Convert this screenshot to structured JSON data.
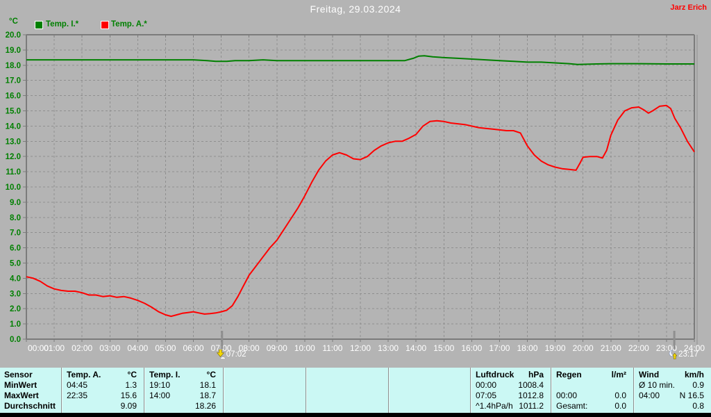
{
  "header": {
    "title": "Freitag, 29.03.2024",
    "user": "Jarz Erich"
  },
  "chart_data": {
    "type": "line",
    "title": "Freitag, 29.03.2024",
    "x_axis": {
      "min_hour": 0,
      "max_hour": 24,
      "tick_labels": [
        "00:00",
        "01:00",
        "02:00",
        "03:00",
        "04:00",
        "05:00",
        "06:00",
        "07:00",
        "08:00",
        "09:00",
        "10:00",
        "11:00",
        "12:00",
        "13:00",
        "14:00",
        "15:00",
        "16:00",
        "17:00",
        "18:00",
        "19:00",
        "20:00",
        "21:00",
        "22:00",
        "23:00",
        "24:00"
      ]
    },
    "y_axis": {
      "unit": "°C",
      "min": 0,
      "max": 20,
      "step": 1
    },
    "grid": true,
    "legend_position": "top-left",
    "legend": [
      {
        "label": "Temp. I.*",
        "color": "#008000"
      },
      {
        "label": "Temp. A.*",
        "color": "#ff0000"
      }
    ],
    "series": [
      {
        "name": "Temp. I.*",
        "color": "#008000",
        "points": [
          [
            0,
            18.35
          ],
          [
            0.5,
            18.35
          ],
          [
            1,
            18.35
          ],
          [
            1.5,
            18.35
          ],
          [
            2,
            18.35
          ],
          [
            2.5,
            18.35
          ],
          [
            3,
            18.35
          ],
          [
            3.5,
            18.35
          ],
          [
            4,
            18.35
          ],
          [
            4.5,
            18.35
          ],
          [
            5,
            18.35
          ],
          [
            5.5,
            18.35
          ],
          [
            6,
            18.35
          ],
          [
            6.5,
            18.3
          ],
          [
            6.8,
            18.25
          ],
          [
            7.2,
            18.25
          ],
          [
            7.5,
            18.3
          ],
          [
            8,
            18.3
          ],
          [
            8.5,
            18.35
          ],
          [
            9,
            18.3
          ],
          [
            10,
            18.3
          ],
          [
            11,
            18.3
          ],
          [
            12,
            18.3
          ],
          [
            13,
            18.3
          ],
          [
            13.6,
            18.3
          ],
          [
            13.9,
            18.45
          ],
          [
            14.1,
            18.6
          ],
          [
            14.3,
            18.62
          ],
          [
            14.6,
            18.55
          ],
          [
            15,
            18.5
          ],
          [
            15.5,
            18.45
          ],
          [
            16,
            18.4
          ],
          [
            16.5,
            18.35
          ],
          [
            17,
            18.3
          ],
          [
            17.5,
            18.25
          ],
          [
            18,
            18.2
          ],
          [
            18.5,
            18.2
          ],
          [
            19,
            18.15
          ],
          [
            19.5,
            18.1
          ],
          [
            19.8,
            18.05
          ],
          [
            20.5,
            18.08
          ],
          [
            21,
            18.1
          ],
          [
            22,
            18.1
          ],
          [
            23,
            18.08
          ],
          [
            24,
            18.08
          ]
        ]
      },
      {
        "name": "Temp. A.*",
        "color": "#ff0000",
        "points": [
          [
            0,
            4.1
          ],
          [
            0.25,
            4.0
          ],
          [
            0.5,
            3.8
          ],
          [
            0.75,
            3.5
          ],
          [
            1,
            3.3
          ],
          [
            1.25,
            3.2
          ],
          [
            1.5,
            3.15
          ],
          [
            1.75,
            3.15
          ],
          [
            2,
            3.05
          ],
          [
            2.25,
            2.9
          ],
          [
            2.5,
            2.9
          ],
          [
            2.75,
            2.8
          ],
          [
            3,
            2.85
          ],
          [
            3.25,
            2.75
          ],
          [
            3.5,
            2.8
          ],
          [
            3.75,
            2.7
          ],
          [
            4,
            2.55
          ],
          [
            4.25,
            2.35
          ],
          [
            4.5,
            2.1
          ],
          [
            4.75,
            1.8
          ],
          [
            5,
            1.6
          ],
          [
            5.2,
            1.5
          ],
          [
            5.4,
            1.6
          ],
          [
            5.6,
            1.7
          ],
          [
            5.8,
            1.75
          ],
          [
            6,
            1.8
          ],
          [
            6.2,
            1.72
          ],
          [
            6.4,
            1.65
          ],
          [
            6.6,
            1.68
          ],
          [
            6.8,
            1.72
          ],
          [
            7,
            1.8
          ],
          [
            7.2,
            1.9
          ],
          [
            7.4,
            2.2
          ],
          [
            7.6,
            2.8
          ],
          [
            7.8,
            3.5
          ],
          [
            8,
            4.2
          ],
          [
            8.25,
            4.8
          ],
          [
            8.5,
            5.4
          ],
          [
            8.75,
            6.0
          ],
          [
            9,
            6.5
          ],
          [
            9.25,
            7.2
          ],
          [
            9.5,
            7.9
          ],
          [
            9.75,
            8.6
          ],
          [
            10,
            9.4
          ],
          [
            10.25,
            10.3
          ],
          [
            10.5,
            11.1
          ],
          [
            10.75,
            11.7
          ],
          [
            11,
            12.1
          ],
          [
            11.25,
            12.25
          ],
          [
            11.5,
            12.1
          ],
          [
            11.75,
            11.85
          ],
          [
            12,
            11.8
          ],
          [
            12.25,
            12.0
          ],
          [
            12.5,
            12.4
          ],
          [
            12.75,
            12.7
          ],
          [
            13,
            12.9
          ],
          [
            13.25,
            13.0
          ],
          [
            13.5,
            13.0
          ],
          [
            13.75,
            13.2
          ],
          [
            14,
            13.45
          ],
          [
            14.25,
            14.0
          ],
          [
            14.5,
            14.3
          ],
          [
            14.75,
            14.35
          ],
          [
            15,
            14.3
          ],
          [
            15.25,
            14.2
          ],
          [
            15.5,
            14.15
          ],
          [
            15.75,
            14.1
          ],
          [
            16,
            14.0
          ],
          [
            16.25,
            13.9
          ],
          [
            16.5,
            13.85
          ],
          [
            16.75,
            13.8
          ],
          [
            17,
            13.75
          ],
          [
            17.25,
            13.7
          ],
          [
            17.5,
            13.7
          ],
          [
            17.75,
            13.55
          ],
          [
            18,
            12.7
          ],
          [
            18.25,
            12.1
          ],
          [
            18.5,
            11.7
          ],
          [
            18.75,
            11.45
          ],
          [
            19,
            11.3
          ],
          [
            19.25,
            11.2
          ],
          [
            19.5,
            11.15
          ],
          [
            19.75,
            11.1
          ],
          [
            19.9,
            11.6
          ],
          [
            20,
            11.95
          ],
          [
            20.25,
            12.0
          ],
          [
            20.5,
            12.0
          ],
          [
            20.7,
            11.9
          ],
          [
            20.85,
            12.4
          ],
          [
            21,
            13.4
          ],
          [
            21.25,
            14.4
          ],
          [
            21.5,
            15.0
          ],
          [
            21.75,
            15.2
          ],
          [
            22,
            15.25
          ],
          [
            22.2,
            15.05
          ],
          [
            22.35,
            14.85
          ],
          [
            22.5,
            15.0
          ],
          [
            22.75,
            15.3
          ],
          [
            23,
            15.35
          ],
          [
            23.15,
            15.15
          ],
          [
            23.3,
            14.5
          ],
          [
            23.5,
            13.9
          ],
          [
            23.75,
            13.0
          ],
          [
            24,
            12.3
          ]
        ]
      }
    ],
    "markers": [
      {
        "time_hours": 7.03,
        "label": "07:02",
        "icon": "sunrise-icon"
      },
      {
        "time_hours": 23.28,
        "label": "23:17",
        "icon": "moonrise-icon"
      }
    ]
  },
  "table": {
    "row_headers": [
      "Sensor",
      "MinWert",
      "MaxWert",
      "Durchschnitt"
    ],
    "columns": [
      {
        "name": "Temp. A.",
        "unit": "°C",
        "rows": [
          [
            "04:45",
            "1.3"
          ],
          [
            "22:35",
            "15.6"
          ],
          [
            "",
            "9.09"
          ]
        ]
      },
      {
        "name": "Temp. I.",
        "unit": "°C",
        "rows": [
          [
            "19:10",
            "18.1"
          ],
          [
            "14:00",
            "18.7"
          ],
          [
            "",
            "18.26"
          ]
        ]
      },
      {
        "name": "",
        "unit": "",
        "rows": [
          [
            "",
            ""
          ],
          [
            "",
            ""
          ],
          [
            "",
            ""
          ]
        ]
      },
      {
        "name": "",
        "unit": "",
        "rows": [
          [
            "",
            ""
          ],
          [
            "",
            ""
          ],
          [
            "",
            ""
          ]
        ]
      },
      {
        "name": "",
        "unit": "",
        "rows": [
          [
            "",
            ""
          ],
          [
            "",
            ""
          ],
          [
            "",
            ""
          ]
        ]
      },
      {
        "name": "Luftdruck",
        "unit": "hPa",
        "rows": [
          [
            "00:00",
            "1008.4"
          ],
          [
            "07:05",
            "1012.8"
          ],
          [
            "^1.4hPa/h",
            "1011.2"
          ]
        ]
      },
      {
        "name": "Regen",
        "unit": "l/m²",
        "rows": [
          [
            "",
            ""
          ],
          [
            "00:00",
            "0.0"
          ],
          [
            "Gesamt:",
            "0.0"
          ]
        ]
      },
      {
        "name": "Wind",
        "unit": "km/h",
        "rows": [
          [
            "Ø 10 min.",
            "0.9"
          ],
          [
            "04:00",
            "N 16.5"
          ],
          [
            "",
            "0.8"
          ]
        ]
      }
    ]
  },
  "colors": {
    "background": "#b4b4b4",
    "plot_frame": "#7b7b7b",
    "grid": "#8f8f8f",
    "axis_label_green": "#008000",
    "axis_label_white": "#ffffff",
    "temp_inside_line": "#008000",
    "temp_outside_line": "#ff0000",
    "table_background": "#cbf8f4",
    "table_text": "#000000",
    "title_text": "#ffffff",
    "user_text": "#ff0000",
    "bottom_bar": "#000000"
  }
}
